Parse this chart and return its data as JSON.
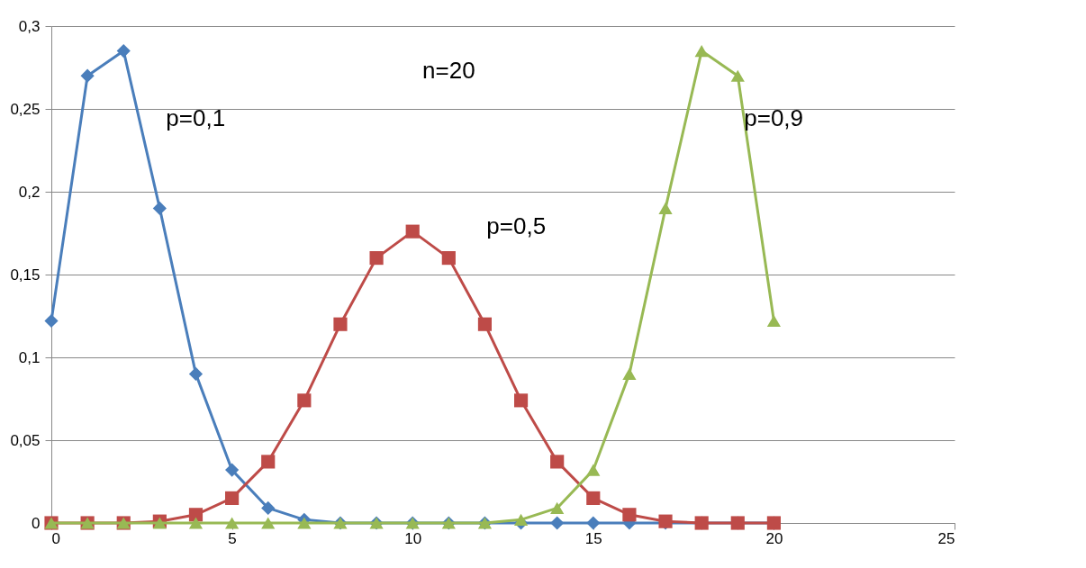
{
  "chart_data": {
    "type": "line",
    "annotations": [
      "n=20"
    ],
    "x": [
      0,
      1,
      2,
      3,
      4,
      5,
      6,
      7,
      8,
      9,
      10,
      11,
      12,
      13,
      14,
      15,
      16,
      17,
      18,
      19,
      20
    ],
    "xlim": [
      0,
      25
    ],
    "xticks": [
      0,
      5,
      10,
      15,
      20,
      25
    ],
    "ylim": [
      0,
      0.3
    ],
    "yticks": [
      0,
      {
        "value": 0.05,
        "label": "0,05"
      },
      {
        "value": 0.1,
        "label": "0,1"
      },
      {
        "value": 0.15,
        "label": "0,15"
      },
      {
        "value": 0.2,
        "label": "0,2"
      },
      {
        "value": 0.25,
        "label": "0,25"
      },
      {
        "value": 0.3,
        "label": "0,3"
      }
    ],
    "grid": "y",
    "legend": false,
    "line_style": "solid",
    "series": [
      {
        "name": "p=0,1",
        "color": "#4a7ebb",
        "marker": "diamond",
        "values": [
          0.122,
          0.27,
          0.285,
          0.19,
          0.09,
          0.032,
          0.009,
          0.002,
          0.0,
          0.0,
          0,
          0,
          0,
          0,
          0,
          0,
          0,
          0,
          0,
          0,
          0
        ]
      },
      {
        "name": "p=0,5",
        "color": "#be4b48",
        "marker": "square",
        "values": [
          0,
          0,
          0,
          0.001,
          0.005,
          0.015,
          0.037,
          0.074,
          0.12,
          0.16,
          0.176,
          0.16,
          0.12,
          0.074,
          0.037,
          0.015,
          0.005,
          0.001,
          0,
          0,
          0
        ]
      },
      {
        "name": "p=0,9",
        "color": "#98b954",
        "marker": "triangle",
        "values": [
          0,
          0,
          0,
          0,
          0,
          0,
          0,
          0,
          0,
          0,
          0,
          0.0,
          0.0,
          0.002,
          0.009,
          0.032,
          0.09,
          0.19,
          0.285,
          0.27,
          0.122
        ]
      }
    ]
  }
}
